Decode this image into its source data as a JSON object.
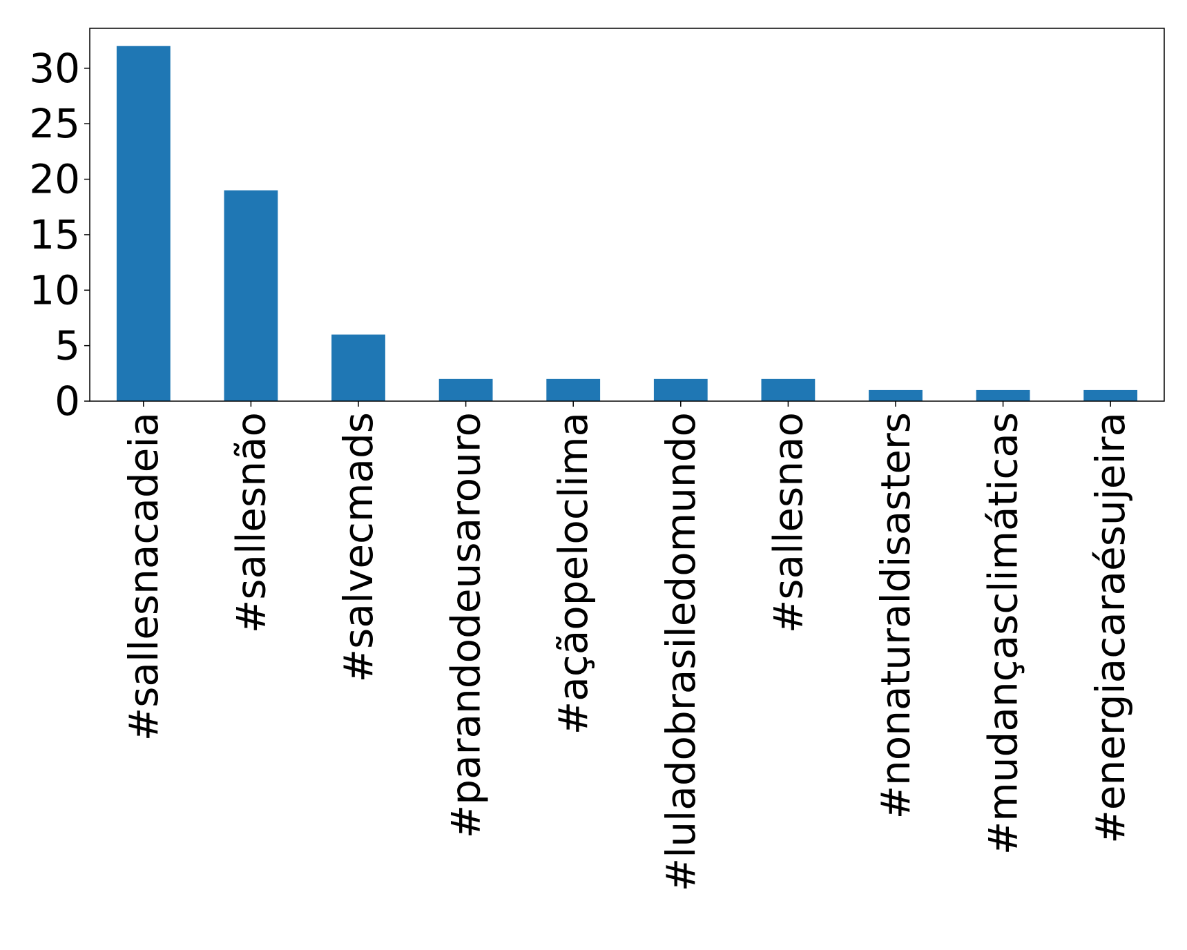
{
  "chart_data": {
    "type": "bar",
    "title": "",
    "xlabel": "",
    "ylabel": "",
    "categories": [
      "#sallesnacadeia",
      "#sallesnão",
      "#salvecmads",
      "#parandodeusarouro",
      "#açãopeloclima",
      "#luladobrasiledomundo",
      "#sallesnao",
      "#nonaturaldisasters",
      "#mudançasclimáticas",
      "#energiacaraésujeira"
    ],
    "values": [
      32,
      19,
      6,
      2,
      2,
      2,
      2,
      1,
      1,
      1
    ],
    "ylim": [
      0,
      33.6
    ],
    "yticks": [
      0,
      5,
      10,
      15,
      20,
      25,
      30
    ],
    "bar_color": "#1f77b4",
    "grid": false,
    "legend": "none"
  }
}
